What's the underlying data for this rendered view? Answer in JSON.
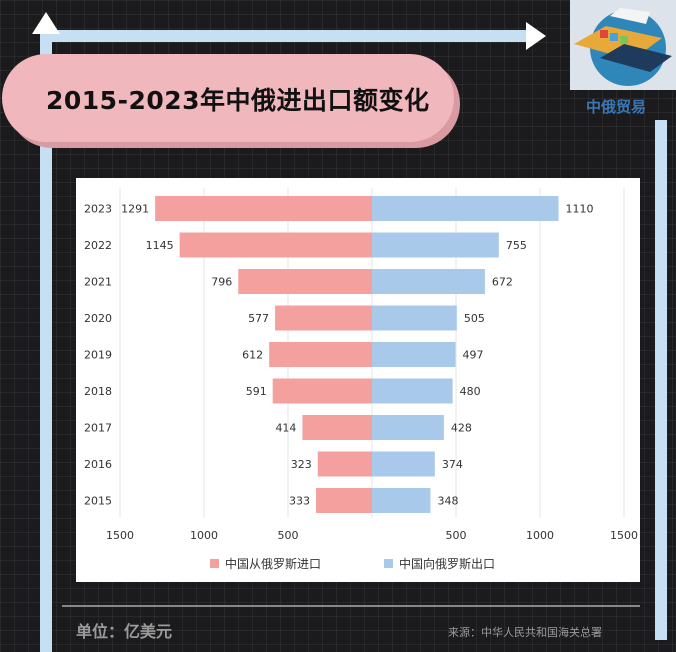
{
  "title": "2015-2023年中俄进出口额变化",
  "logo_text": "中俄贸易",
  "unit_label": "单位：亿美元",
  "source_label": "来源：中华人民共和国海关总署",
  "colors": {
    "import": "#f4a09f",
    "export": "#a8c9ea"
  },
  "legend": {
    "import": "中国从俄罗斯进口",
    "export": "中国向俄罗斯出口"
  },
  "chart_data": {
    "type": "bar",
    "orientation": "horizontal-butterfly",
    "categories": [
      "2023",
      "2022",
      "2021",
      "2020",
      "2019",
      "2018",
      "2017",
      "2016",
      "2015"
    ],
    "series": [
      {
        "name": "中国从俄罗斯进口",
        "side": "left",
        "values": [
          1291,
          1145,
          796,
          577,
          612,
          591,
          414,
          323,
          333
        ]
      },
      {
        "name": "中国向俄罗斯出口",
        "side": "right",
        "values": [
          1110,
          755,
          672,
          505,
          497,
          480,
          428,
          374,
          348
        ]
      }
    ],
    "x_ticks": [
      "1500",
      "1000",
      "500",
      "",
      "500",
      "1000",
      "1500"
    ],
    "xlim": [
      -1500,
      1500
    ],
    "grid": "vertical",
    "legend_position": "bottom"
  }
}
